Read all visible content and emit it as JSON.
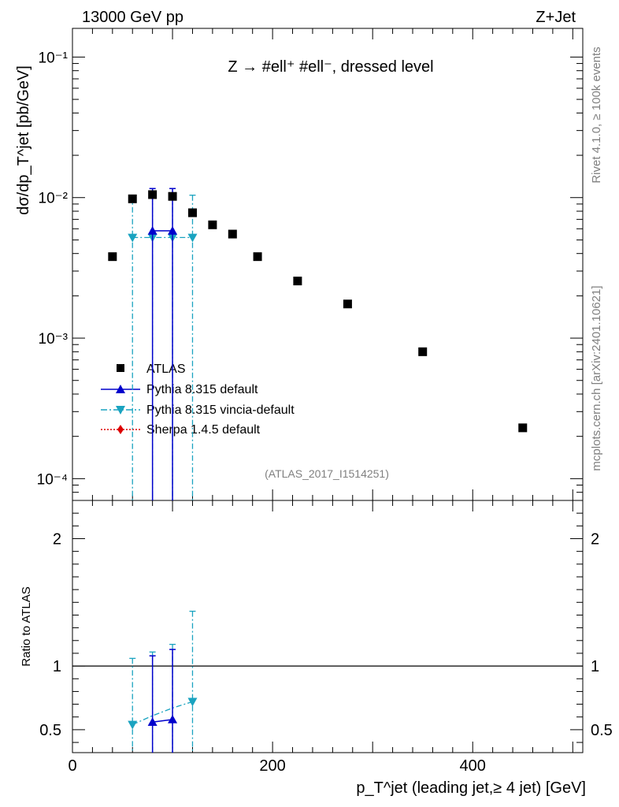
{
  "header": {
    "energy_label": "13000 GeV pp",
    "process_label": "Z+Jet"
  },
  "side_labels": {
    "rivet": "Rivet 4.1.0, ≥ 100k events",
    "mcplots": "mcplots.cern.ch [arXiv:2401.10621]"
  },
  "chart_data": {
    "type": "scatter",
    "title": "Z → #ell⁺ #ell⁻, dressed level",
    "analysis_id": "(ATLAS_2017_I1514251)",
    "xlabel": "p_T^jet (leading jet,≥ 4 jet) [GeV]",
    "ylabel": "dσ/dp_T^jet [pb/GeV]",
    "ratio_ylabel": "Ratio to ATLAS",
    "xlim": [
      0,
      510
    ],
    "ylim": [
      7e-05,
      0.16
    ],
    "yscale": "log",
    "ratio_ylim": [
      0.32,
      2.3
    ],
    "x_ticks": [
      0,
      200,
      400
    ],
    "x_tick_labels": [
      "0",
      "200",
      "400"
    ],
    "y_tick_labels": [
      "10⁻¹",
      "10⁻²",
      "10⁻³",
      "10⁻⁴"
    ],
    "ratio_ticks": [
      0.5,
      1,
      2
    ],
    "ratio_tick_labels": [
      "0.5",
      "1",
      "2"
    ],
    "legend": [
      {
        "label": "ATLAS",
        "color": "#000000",
        "marker": "square",
        "line": "none"
      },
      {
        "label": "Pythia 8.315 default",
        "color": "#0000cc",
        "marker": "triangle-up",
        "line": "solid"
      },
      {
        "label": "Pythia 8.315 vincia-default",
        "color": "#1aa3c0",
        "marker": "triangle-down",
        "line": "dashdot"
      },
      {
        "label": "Sherpa 1.4.5 default",
        "color": "#dd0000",
        "marker": "diamond",
        "line": "dotted"
      }
    ],
    "series": [
      {
        "name": "ATLAS",
        "x": [
          40,
          60,
          80,
          100,
          120,
          140,
          160,
          185,
          225,
          275,
          350,
          450
        ],
        "values": [
          0.0038,
          0.0098,
          0.0105,
          0.0102,
          0.0078,
          0.0064,
          0.0055,
          0.0038,
          0.00255,
          0.00175,
          0.0008,
          0.00023
        ]
      },
      {
        "name": "Pythia 8.315 default",
        "x": [
          80,
          100
        ],
        "values": [
          0.0058,
          0.0058
        ],
        "err_low": [
          0.0058,
          0.0058
        ],
        "err_high": [
          0.0058,
          0.0058
        ],
        "ratio": [
          0.56,
          0.58
        ],
        "ratio_err_low": [
          0.56,
          0.58
        ],
        "ratio_err_high": [
          0.52,
          0.55
        ]
      },
      {
        "name": "Pythia 8.315 vincia-default",
        "x": [
          60,
          80,
          100,
          120
        ],
        "values": [
          0.0052,
          0.0052,
          0.0052,
          0.0052
        ],
        "err_low": [
          0.0052,
          0.0052,
          0.0052,
          0.0052
        ],
        "err_high": [
          0.0052,
          0.0052,
          0.0052,
          0.0052
        ],
        "ratio": [
          0.54,
          0.61,
          0.67,
          0.72
        ],
        "ratio_err_low": [
          0.54,
          0.61,
          0.67,
          0.72
        ],
        "ratio_err_high": [
          0.52,
          0.5,
          0.5,
          0.71
        ]
      },
      {
        "name": "Sherpa 1.4.5 default",
        "x": [],
        "values": []
      }
    ]
  }
}
